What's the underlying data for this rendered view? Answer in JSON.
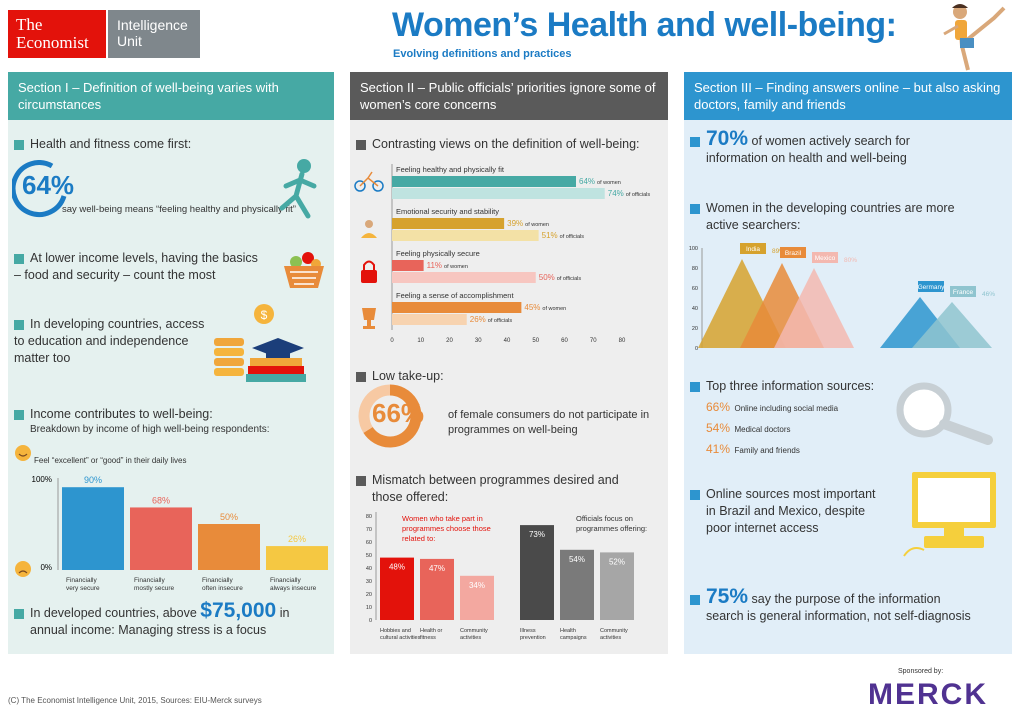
{
  "header": {
    "logo_line1": "The",
    "logo_line2": "Economist",
    "unit_line1": "Intelligence",
    "unit_line2": "Unit",
    "title": "Women’s Health and well-being:",
    "subtitle": "Evolving definitions and practices"
  },
  "section1": {
    "head": "Section I – Definition of well-being varies with circumstances",
    "health_heading": "Health and fitness come first:",
    "health_pct": "64%",
    "health_text": "say well-being means “feeling healthy and physically fit”",
    "income_heading_1": "At lower income levels, having the basics",
    "income_heading_2": "– food and security – count the most",
    "dev_heading_1": "In developing countries, access",
    "dev_heading_2": "to education and independence",
    "dev_heading_3": "matter too",
    "contrib_heading": "Income contributes to well-being:",
    "contrib_sub": "Breakdown by income of high well-being respondents:",
    "chart_note": "Feel “excellent” or “good” in their daily lives",
    "developed_1": "In developed countries, above",
    "developed_amount": "$75,000",
    "developed_2": "in",
    "developed_3": "annual income: Managing stress is a focus"
  },
  "section2": {
    "head": "Section II – Public officials’ priorities ignore some of women’s core concerns",
    "contrast_heading": "Contrasting views on the definition of well-being:",
    "lowtake_heading": "Low take-up:",
    "lowtake_pct": "66%",
    "lowtake_text_1": "of female consumers do not participate in",
    "lowtake_text_2": "programmes on well-being",
    "mismatch_heading_1": "Mismatch between programmes desired and",
    "mismatch_heading_2": "those offered:",
    "women_note_1": "Women who take part in",
    "women_note_2": "programmes choose those",
    "women_note_3": "related to:",
    "officials_note_1": "Officials focus on",
    "officials_note_2": "programmes offering:"
  },
  "section3": {
    "head": "Section III – Finding answers online – but also asking doctors, family and friends",
    "search_pct": "70%",
    "search_text_1": "of women actively search for",
    "search_text_2": "information on health and well-being",
    "dev_heading_1": "Women in the developing countries are more",
    "dev_heading_2": "active searchers:",
    "sources_heading": "Top three information sources:",
    "sources": [
      {
        "pct": "66%",
        "label": "Online including social media"
      },
      {
        "pct": "54%",
        "label": "Medical doctors"
      },
      {
        "pct": "41%",
        "label": "Family and friends"
      }
    ],
    "online_1": "Online sources most important",
    "online_2": "in Brazil and Mexico, despite",
    "online_3": "poor internet access",
    "purpose_pct": "75%",
    "purpose_1": "say the purpose of the information",
    "purpose_2": "search is general information, not self-diagnosis"
  },
  "footer": {
    "copyright": "(C) The Economist Intelligence Unit, 2015, Sources: EIU-Merck surveys",
    "sponsored": "Sponsored by:",
    "sponsor": "MERCK"
  },
  "colors": {
    "teal": "#46a9a4",
    "blue": "#1b7bc4",
    "orange": "#e88b3a",
    "red": "#e3120b"
  },
  "chart_data": [
    {
      "type": "bar",
      "title": "Feel “excellent” or “good” in their daily lives",
      "categories": [
        "Financially very secure",
        "Financially mostly secure",
        "Financially often insecure",
        "Financially always insecure"
      ],
      "values": [
        90,
        68,
        50,
        26
      ],
      "value_labels": [
        "90%",
        "68%",
        "50%",
        "26%"
      ],
      "yticks": [
        "100%",
        "0%"
      ],
      "ylim": [
        0,
        100
      ]
    },
    {
      "type": "bar",
      "title": "Contrasting views on the definition of well-being",
      "orientation": "horizontal",
      "categories": [
        "Feeling healthy and physically fit",
        "Emotional security and stability",
        "Feeling physically secure",
        "Feeling a sense of accomplishment"
      ],
      "series": [
        {
          "name": "of women",
          "values": [
            64,
            39,
            11,
            45
          ]
        },
        {
          "name": "of officials",
          "values": [
            74,
            51,
            50,
            26
          ]
        }
      ],
      "xticks": [
        "0",
        "10",
        "20",
        "30",
        "40",
        "50",
        "60",
        "70",
        "80"
      ],
      "xlim": [
        0,
        80
      ]
    },
    {
      "type": "pie",
      "title": "Low take-up",
      "values": [
        66,
        34
      ]
    },
    {
      "type": "bar",
      "title": "Mismatch between programmes desired and those offered",
      "groups": [
        {
          "name": "Women who take part in programmes choose those related to",
          "categories": [
            "Hobbies and cultural activities",
            "Health or fitness",
            "Community activities"
          ],
          "values": [
            48,
            47,
            34
          ]
        },
        {
          "name": "Officials focus on programmes offering",
          "categories": [
            "Illness prevention",
            "Health campaigns",
            "Community activities"
          ],
          "values": [
            73,
            54,
            52
          ]
        }
      ],
      "yticks": [
        "0",
        "10",
        "20",
        "30",
        "40",
        "50",
        "60",
        "70",
        "80"
      ],
      "ylim": [
        0,
        80
      ]
    },
    {
      "type": "area",
      "title": "Women in the developing countries are more active searchers",
      "categories": [
        "India",
        "Brazil",
        "Mexico",
        "Germany",
        "France"
      ],
      "values": [
        89,
        85,
        80,
        51,
        46
      ],
      "value_labels": [
        "89%",
        "85%",
        "80%",
        "51%",
        "46%"
      ],
      "yticks": [
        "100",
        "80",
        "60",
        "40",
        "20",
        "0"
      ],
      "ylim": [
        0,
        100
      ]
    }
  ]
}
